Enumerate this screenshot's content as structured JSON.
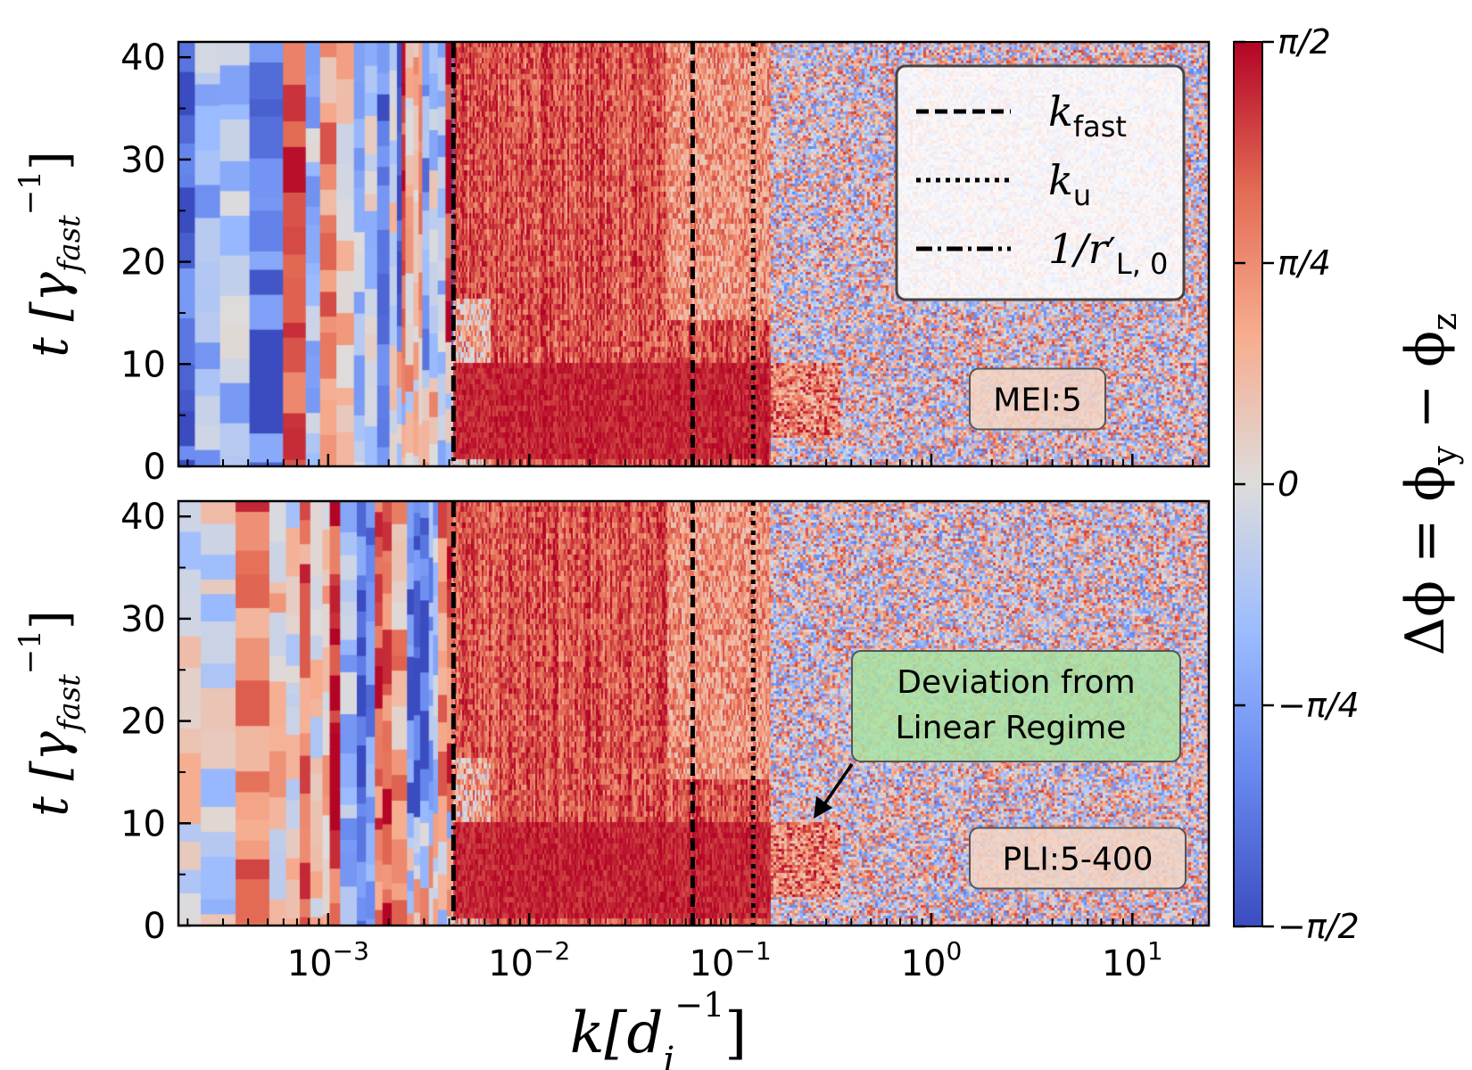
{
  "chart_data": {
    "type": "heatmap",
    "colormap": "coolwarm",
    "x_scale": "log",
    "xlim": [
      0.00018,
      24
    ],
    "ylim": [
      0,
      41.5
    ],
    "xlabel": "k[d",
    "xlabel_sub": "i",
    "xlabel_sup": "−1",
    "xlabel_close": "]",
    "x_ticks": [
      {
        "value": 0.001,
        "base": "10",
        "exp": "−3"
      },
      {
        "value": 0.01,
        "base": "10",
        "exp": "−2"
      },
      {
        "value": 0.1,
        "base": "10",
        "exp": "−1"
      },
      {
        "value": 1,
        "base": "10",
        "exp": "0"
      },
      {
        "value": 10,
        "base": "10",
        "exp": "1"
      }
    ],
    "y_ticks": [
      "0",
      "10",
      "20",
      "30",
      "40"
    ],
    "y_tick_values": [
      0,
      10,
      20,
      30,
      40
    ],
    "ylabel": {
      "t": "t [",
      "gamma": "γ",
      "sub": "fast",
      "sup": "−1",
      "close": "]"
    },
    "reference_lines": [
      {
        "name": "k_fast",
        "x": 0.065,
        "style": "dashed"
      },
      {
        "name": "k_u",
        "x": 0.13,
        "style": "dotted"
      },
      {
        "name": "1/r'_L,0",
        "x": 0.0042,
        "style": "dashdot"
      }
    ],
    "legend": {
      "placement": "top-right",
      "entries": [
        {
          "style": "dashed",
          "text": "k",
          "sub": "fast"
        },
        {
          "style": "dotted",
          "text": "k",
          "sub": "u"
        },
        {
          "style": "dashdot",
          "text": "1/r",
          "prime": "′",
          "sub": "L, 0"
        }
      ]
    },
    "panels": [
      {
        "label": "MEI:5",
        "position": "top"
      },
      {
        "label": "PLI:5-400",
        "position": "bottom",
        "annotation": {
          "text_line1": "Deviation from",
          "text_line2": "Linear Regime"
        }
      }
    ],
    "colorbar": {
      "range": [
        "−π/2",
        "π/2"
      ],
      "ticks": [
        "π/2",
        "π/4",
        "0",
        "−π/4",
        "−π/2"
      ],
      "tick_values": [
        1.5708,
        0.7854,
        0,
        -0.7854,
        -1.5708
      ],
      "label": "Δϕ = ϕ",
      "label_sub1": "y",
      "label_mid": " − ϕ",
      "label_sub2": "z",
      "colors": [
        "#3b4cc0",
        "#7b9ff9",
        "#c0d4f5",
        "#dddcdc",
        "#f2cbb7",
        "#ee8468",
        "#b40426"
      ]
    }
  }
}
